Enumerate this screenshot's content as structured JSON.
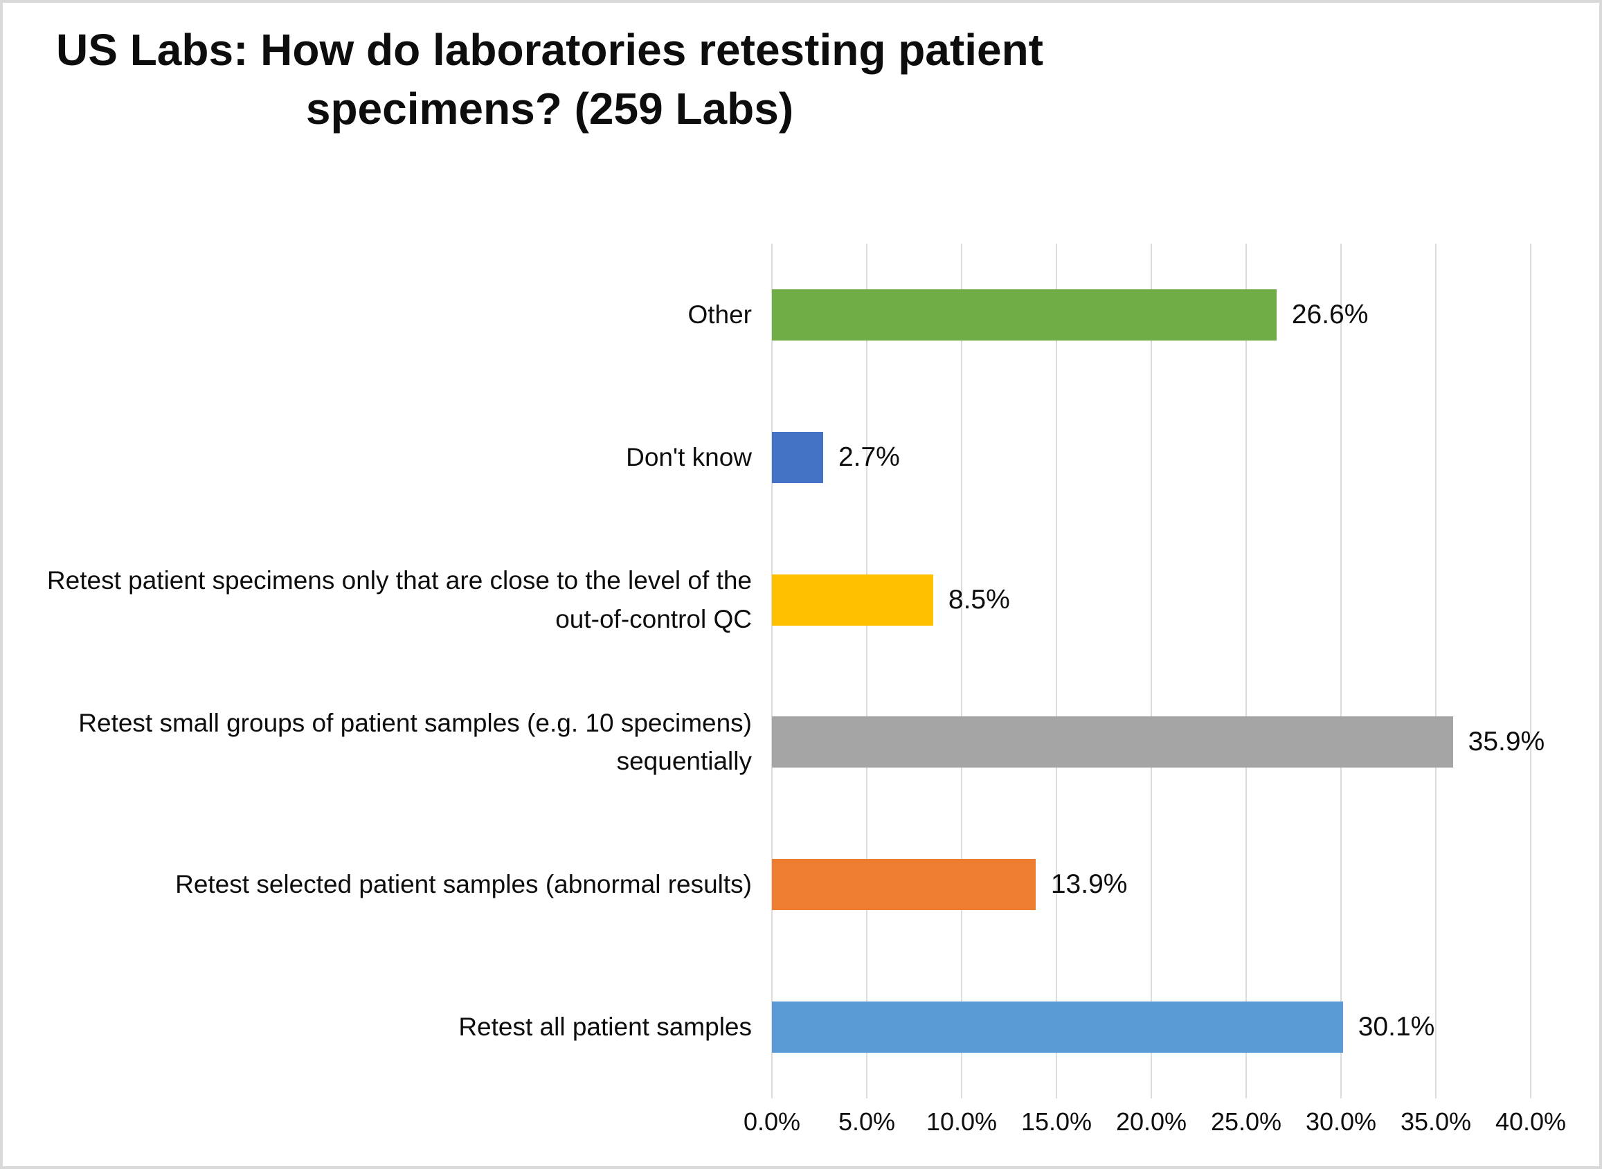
{
  "chart_data": {
    "type": "bar",
    "orientation": "horizontal",
    "title": "US Labs: How do laboratories retesting patient specimens? (259 Labs)",
    "categories": [
      "Other",
      "Don't know",
      "Retest patient specimens only that are close to the level of the out-of-control QC",
      "Retest small groups of patient samples (e.g. 10 specimens) sequentially",
      "Retest selected patient samples (abnormal results)",
      "Retest all patient samples"
    ],
    "values": [
      26.6,
      2.7,
      8.5,
      35.9,
      13.9,
      30.1
    ],
    "value_labels": [
      "26.6%",
      "2.7%",
      "8.5%",
      "35.9%",
      "13.9%",
      "30.1%"
    ],
    "bar_colors": [
      "#70AD47",
      "#4472C4",
      "#FFC000",
      "#A5A5A5",
      "#ED7D31",
      "#5B9BD5"
    ],
    "xlabel": "",
    "ylabel": "",
    "xlim": [
      0,
      40
    ],
    "x_ticks": [
      "0.0%",
      "5.0%",
      "10.0%",
      "15.0%",
      "20.0%",
      "25.0%",
      "30.0%",
      "35.0%",
      "40.0%"
    ],
    "grid": true,
    "gridline_color": "#dcdcdc",
    "legend": "none"
  }
}
